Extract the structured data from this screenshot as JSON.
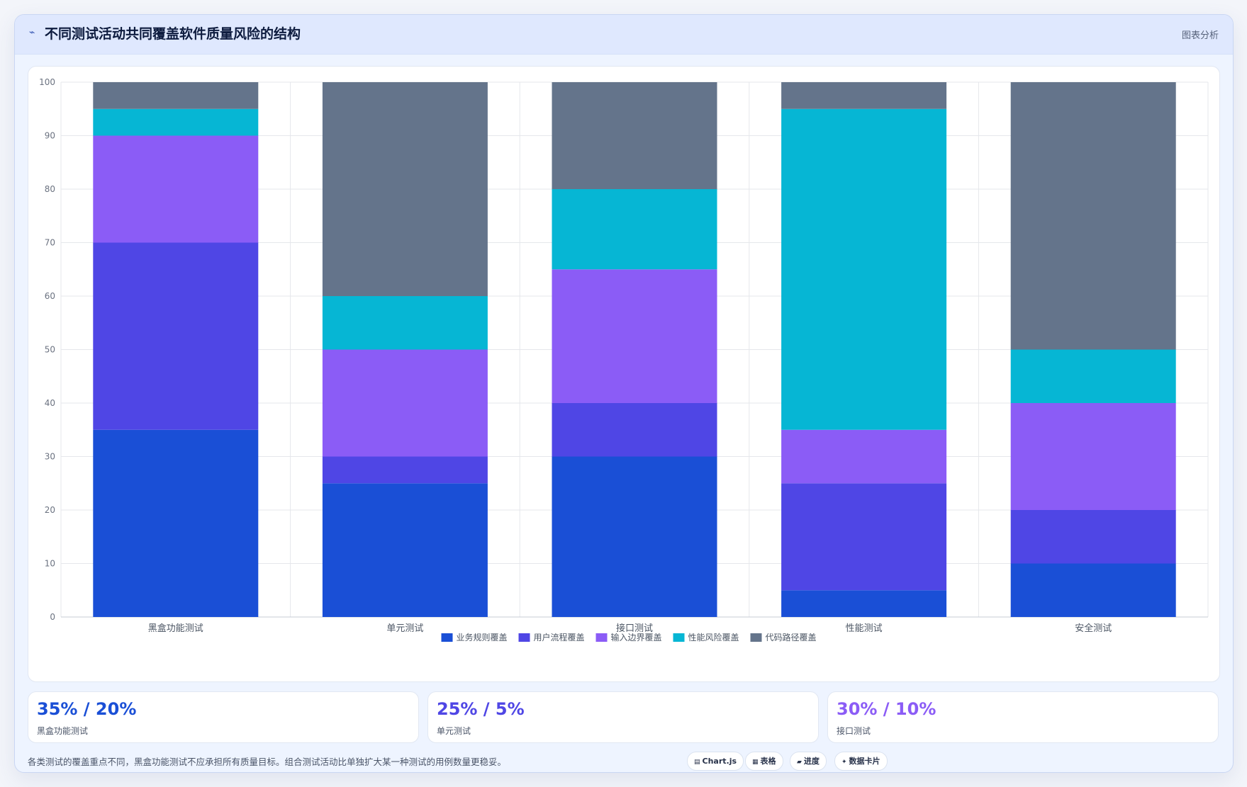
{
  "header": {
    "icon": "wave-icon",
    "title": "不同测试活动共同覆盖软件质量风险的结构",
    "tag": "图表分析"
  },
  "chart_data": {
    "type": "bar",
    "stacked": true,
    "categories": [
      "黑盒功能测试",
      "单元测试",
      "接口测试",
      "性能测试",
      "安全测试"
    ],
    "series": [
      {
        "name": "业务规则覆盖",
        "color": "#1a4fd6",
        "values": [
          35,
          25,
          30,
          5,
          10
        ]
      },
      {
        "name": "用户流程覆盖",
        "color": "#4f46e5",
        "values": [
          35,
          5,
          10,
          20,
          10
        ]
      },
      {
        "name": "输入边界覆盖",
        "color": "#8b5cf6",
        "values": [
          20,
          20,
          25,
          10,
          20
        ]
      },
      {
        "name": "性能风险覆盖",
        "color": "#06b6d4",
        "values": [
          5,
          10,
          15,
          60,
          10
        ]
      },
      {
        "name": "代码路径覆盖",
        "color": "#64748b",
        "values": [
          5,
          40,
          20,
          5,
          50
        ]
      }
    ],
    "ylim": [
      0,
      100
    ],
    "yticks": [
      0,
      10,
      20,
      30,
      40,
      50,
      60,
      70,
      80,
      90,
      100
    ],
    "grid": true,
    "legend_position": "bottom"
  },
  "stats": [
    {
      "value": "35% / 20%",
      "label": "黑盒功能测试",
      "color": "#1a4fd6"
    },
    {
      "value": "25% / 5%",
      "label": "单元测试",
      "color": "#4f46e5"
    },
    {
      "value": "30% / 10%",
      "label": "接口测试",
      "color": "#8b5cf6"
    }
  ],
  "note": "各类测试的覆盖重点不同，黑盒功能测试不应承担所有质量目标。组合测试活动比单独扩大某一种测试的用例数量更稳妥。",
  "chips": [
    {
      "icon": "chart-icon",
      "label": "Chart.js"
    },
    {
      "icon": "table-icon",
      "label": "表格"
    },
    {
      "icon": "progress-icon",
      "label": "进度"
    },
    {
      "icon": "sparkle-icon",
      "label": "数据卡片"
    }
  ]
}
